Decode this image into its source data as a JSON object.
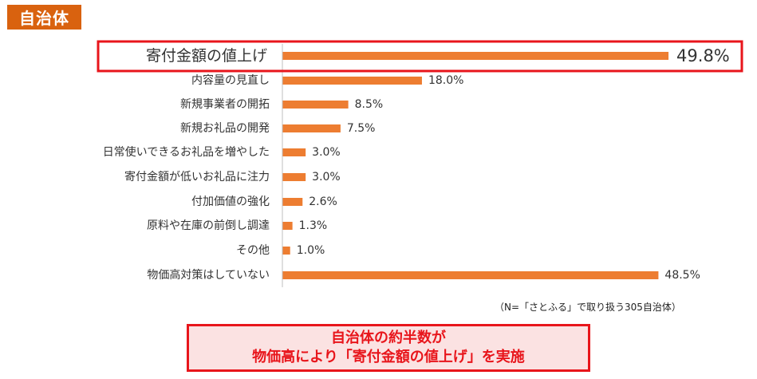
{
  "tag": "自治体",
  "chart_data": {
    "type": "bar",
    "orientation": "horizontal",
    "categories": [
      "寄付金額の値上げ",
      "内容量の見直し",
      "新規事業者の開拓",
      "新規お礼品の開発",
      "日常使いできるお礼品を増やした",
      "寄付金額が低いお礼品に注力",
      "付加価値の強化",
      "原料や在庫の前倒し調達",
      "その他",
      "物価高対策はしていない"
    ],
    "values": [
      49.8,
      18.0,
      8.5,
      7.5,
      3.0,
      3.0,
      2.6,
      1.3,
      1.0,
      48.5
    ],
    "value_labels": [
      "49.8%",
      "18.0%",
      "8.5%",
      "7.5%",
      "3.0%",
      "3.0%",
      "2.6%",
      "1.3%",
      "1.0%",
      "48.5%"
    ],
    "xlim": [
      0,
      50
    ],
    "highlight_index": 0,
    "bar_color": "#ed7d31",
    "highlight_color": "#e8151b"
  },
  "note": "（N=「さとふる」で取り扱う305自治体）",
  "callout": {
    "line1": "自治体の約半数が",
    "line2": "物価高により「寄付金額の値上げ」を実施"
  }
}
